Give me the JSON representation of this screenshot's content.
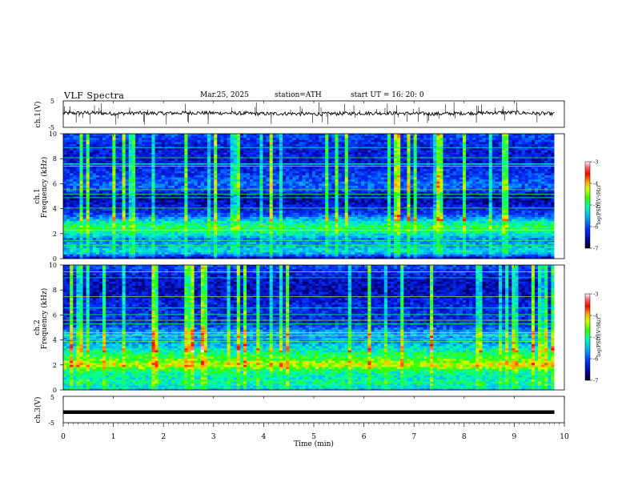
{
  "header": {
    "title": "VLF  Spectra",
    "date": "Mar.25, 2025",
    "station": "station=ATH",
    "start_ut": "start  UT  =    16: 20: 0"
  },
  "chart_data": [
    {
      "type": "line",
      "name": "ch1-waveform",
      "ylabel": "ch.1(V)",
      "ylim": [
        -5,
        5
      ],
      "yticks": [
        "5",
        "-5"
      ],
      "xlim": [
        0,
        10
      ],
      "x": [
        0.0,
        0.5,
        1.0,
        1.5,
        2.0,
        2.5,
        3.0,
        3.5,
        4.0,
        4.5,
        5.0,
        5.5,
        6.0,
        6.5,
        7.0,
        7.5,
        8.0,
        8.5,
        9.0,
        9.5,
        9.8
      ],
      "values": [
        0.3,
        0.5,
        0.2,
        0.4,
        0.3,
        0.5,
        0.4,
        0.3,
        0.1,
        0.2,
        0.0,
        0.2,
        0.3,
        0.4,
        0.2,
        0.1,
        0.3,
        0.5,
        0.6,
        0.2,
        0.1
      ]
    },
    {
      "type": "heatmap",
      "name": "ch1-spectrogram",
      "ylabel_channel": "ch.1",
      "ylabel": "Frequency (kHz)",
      "ylim": [
        0,
        10
      ],
      "yticks": [
        "0",
        "2",
        "4",
        "6",
        "8",
        "10"
      ],
      "xlim": [
        0,
        9.8
      ],
      "colorbar": {
        "label": "log(PSD)(V²/Hz)",
        "ticks": [
          "-3",
          "-4",
          "-5",
          "-6",
          "-7"
        ],
        "range": [
          -7,
          -3
        ]
      },
      "profile": [
        {
          "f": 0.0,
          "v": -6.6
        },
        {
          "f": 0.5,
          "v": -5.3
        },
        {
          "f": 1.0,
          "v": -5.5
        },
        {
          "f": 1.5,
          "v": -5.8
        },
        {
          "f": 2.0,
          "v": -5.2
        },
        {
          "f": 2.5,
          "v": -4.8
        },
        {
          "f": 3.0,
          "v": -5.3
        },
        {
          "f": 3.5,
          "v": -6.0
        },
        {
          "f": 4.0,
          "v": -6.3
        },
        {
          "f": 4.5,
          "v": -6.5
        },
        {
          "f": 5.0,
          "v": -6.6
        },
        {
          "f": 5.5,
          "v": -6.0
        },
        {
          "f": 6.0,
          "v": -5.9
        },
        {
          "f": 7.0,
          "v": -6.2
        },
        {
          "f": 8.0,
          "v": -6.4
        },
        {
          "f": 9.0,
          "v": -6.3
        },
        {
          "f": 10.0,
          "v": -6.0
        }
      ]
    },
    {
      "type": "heatmap",
      "name": "ch2-spectrogram",
      "ylabel_channel": "ch.2",
      "ylabel": "Frequency (kHz)",
      "ylim": [
        0,
        10
      ],
      "yticks": [
        "0",
        "2",
        "4",
        "6",
        "8",
        "10"
      ],
      "xlim": [
        0,
        9.8
      ],
      "colorbar": {
        "label": "log(PSD)(V²/Hz)",
        "ticks": [
          "-3",
          "-4",
          "-5",
          "-6",
          "-7"
        ],
        "range": [
          -7,
          -3
        ]
      },
      "profile": [
        {
          "f": 0.0,
          "v": -5.6
        },
        {
          "f": 0.5,
          "v": -5.0
        },
        {
          "f": 1.0,
          "v": -5.2
        },
        {
          "f": 1.5,
          "v": -5.0
        },
        {
          "f": 2.0,
          "v": -4.2
        },
        {
          "f": 2.5,
          "v": -4.7
        },
        {
          "f": 3.0,
          "v": -5.0
        },
        {
          "f": 3.5,
          "v": -5.4
        },
        {
          "f": 4.0,
          "v": -5.7
        },
        {
          "f": 4.5,
          "v": -5.5
        },
        {
          "f": 5.0,
          "v": -6.0
        },
        {
          "f": 5.5,
          "v": -6.3
        },
        {
          "f": 6.0,
          "v": -6.2
        },
        {
          "f": 7.0,
          "v": -6.3
        },
        {
          "f": 8.0,
          "v": -6.5
        },
        {
          "f": 9.0,
          "v": -6.4
        },
        {
          "f": 10.0,
          "v": -6.0
        }
      ]
    },
    {
      "type": "line",
      "name": "ch3-waveform",
      "ylabel": "ch.3(V)",
      "ylim": [
        -5,
        5
      ],
      "yticks": [
        "5",
        "-5"
      ],
      "xlim": [
        0,
        10
      ],
      "x": [
        0.0,
        9.8
      ],
      "values": [
        -1.0,
        -1.0
      ]
    }
  ],
  "time_axis": {
    "label": "Time  (min)",
    "ticks": [
      "0",
      "1",
      "2",
      "3",
      "4",
      "5",
      "6",
      "7",
      "8",
      "9",
      "10"
    ],
    "range": [
      0,
      10
    ]
  }
}
